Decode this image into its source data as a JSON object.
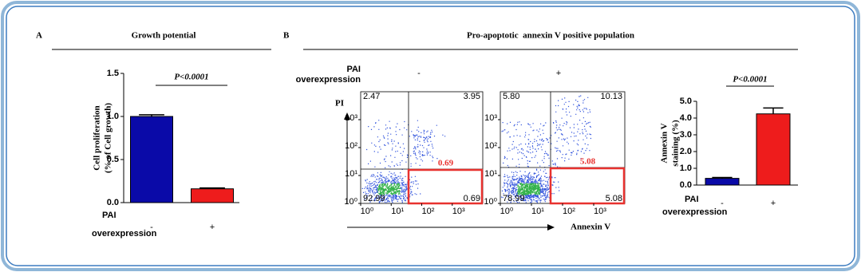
{
  "chart_data": [
    {
      "type": "bar",
      "panel": "A",
      "title": "Growth potential",
      "ylabel": [
        "Cell proliferation",
        "(% of Cell growth)"
      ],
      "xlabel": [
        "PAI",
        "overexpression"
      ],
      "categories": [
        "-",
        "+"
      ],
      "values": [
        1.0,
        0.16
      ],
      "errors": [
        0.02,
        0.01
      ],
      "colors": [
        "#0a0aa8",
        "#ee1c1c"
      ],
      "ylim": [
        0,
        1.5
      ],
      "yticks": [
        {
          "value": 0,
          "label": "0.0"
        },
        {
          "value": 0.5,
          "label": "0.5"
        },
        {
          "value": 1,
          "label": "1.0"
        },
        {
          "value": 1.5,
          "label": "1.5"
        }
      ],
      "annotation": "P<0.0001"
    },
    {
      "type": "flow",
      "condition": "-",
      "log": true,
      "values": [
        2.47,
        3.95,
        92.99,
        0.69
      ],
      "xlim": [
        1,
        10000
      ],
      "ylim": [
        1,
        10000
      ],
      "xticks": [
        {
          "value": 1,
          "label": "10⁰"
        },
        {
          "value": 10,
          "label": "10¹"
        },
        {
          "value": 100,
          "label": "10²"
        },
        {
          "value": 1000,
          "label": "10³"
        }
      ],
      "yticks": [
        {
          "value": 1,
          "label": "10⁰"
        },
        {
          "value": 10,
          "label": "10¹"
        },
        {
          "value": 100,
          "label": "10²"
        },
        {
          "value": 1000,
          "label": "10³"
        }
      ],
      "highlight_color": "#e8322f"
    },
    {
      "type": "flow",
      "condition": "+",
      "log": true,
      "values": [
        5.8,
        10.13,
        78.99,
        5.08
      ],
      "value_labels": [
        "5.80",
        "10.13",
        "78.99",
        "5.08"
      ],
      "xlim": [
        1,
        10000
      ],
      "ylim": [
        1,
        10000
      ],
      "xticks": [
        {
          "value": 1,
          "label": "10⁰"
        },
        {
          "value": 10,
          "label": "10¹"
        },
        {
          "value": 100,
          "label": "10²"
        },
        {
          "value": 1000,
          "label": "10³"
        }
      ],
      "yticks": [
        {
          "value": 1,
          "label": "10⁰"
        },
        {
          "value": 10,
          "label": "10¹"
        },
        {
          "value": 100,
          "label": "10²"
        },
        {
          "value": 1000,
          "label": "10³"
        }
      ],
      "highlight_color": "#e8322f"
    },
    {
      "type": "bar",
      "ylabel": [
        "Annexin V",
        "staining (%)"
      ],
      "xlabel": [
        "PAI",
        "overexpression"
      ],
      "categories": [
        "-",
        "+"
      ],
      "values": [
        0.4,
        4.25
      ],
      "errors": [
        0.05,
        0.35
      ],
      "colors": [
        "#0a0aa8",
        "#ee1c1c"
      ],
      "ylim": [
        0,
        5
      ],
      "yticks": [
        {
          "value": 0,
          "label": "0.0"
        },
        {
          "value": 1,
          "label": "1.0"
        },
        {
          "value": 2,
          "label": "2.0"
        },
        {
          "value": 3,
          "label": "3.0"
        },
        {
          "value": 4,
          "label": "4.0"
        },
        {
          "value": 5,
          "label": "5.0"
        }
      ],
      "annotation": "P<0.0001"
    }
  ],
  "panel_b": {
    "label": "B",
    "title": "Pro-apoptotic  annexin V positive population",
    "condition_label": [
      "PAI",
      "overexpression"
    ],
    "ylabel": "PI",
    "xlabel": "Annexin V"
  }
}
